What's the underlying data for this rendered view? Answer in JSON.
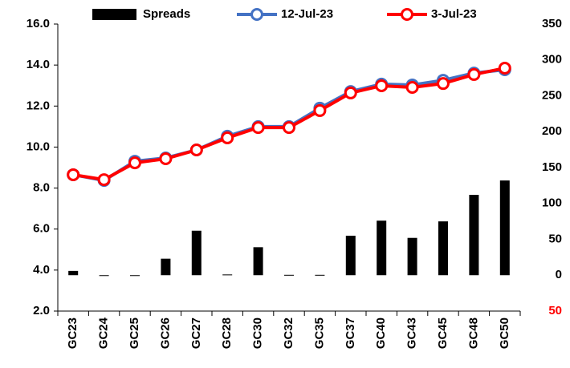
{
  "chart_data": {
    "type": "bar",
    "categories": [
      "GC23",
      "GC24",
      "GC25",
      "GC26",
      "GC27",
      "GC28",
      "GC30",
      "GC32",
      "GC35",
      "GC37",
      "GC40",
      "GC43",
      "GC45",
      "GC48",
      "GC50"
    ],
    "series": [
      {
        "name": "Spreads",
        "type": "bar",
        "axis": "y2",
        "color": "#000000",
        "values": [
          6,
          0,
          0,
          23,
          62,
          1,
          39,
          0.5,
          0.5,
          55,
          76,
          52,
          75,
          112,
          132
        ]
      },
      {
        "name": "12-Jul-23",
        "type": "line",
        "color": "#4472c4",
        "values": [
          8.65,
          8.37,
          9.31,
          9.47,
          9.86,
          10.53,
          11.0,
          11.0,
          11.9,
          12.71,
          13.07,
          13.03,
          13.26,
          13.61,
          13.77
        ]
      },
      {
        "name": "3-Jul-23",
        "type": "line",
        "color": "#ff0000",
        "values": [
          8.65,
          8.41,
          9.23,
          9.43,
          9.86,
          10.45,
          10.95,
          10.95,
          11.78,
          12.64,
          12.99,
          12.91,
          13.1,
          13.54,
          13.85
        ]
      }
    ],
    "ylim": [
      2,
      16
    ],
    "yticks": [
      {
        "value": 2,
        "label": "2.0"
      },
      {
        "value": 4,
        "label": "4.0"
      },
      {
        "value": 6,
        "label": "6.0"
      },
      {
        "value": 8,
        "label": "8.0"
      },
      {
        "value": 10,
        "label": "10.0"
      },
      {
        "value": 12,
        "label": "12.0"
      },
      {
        "value": 14,
        "label": "14.0"
      },
      {
        "value": 16,
        "label": "16.0"
      }
    ],
    "y2lim": [
      -50,
      350
    ],
    "y2ticks": [
      {
        "value": -50,
        "label": "50"
      },
      0,
      50,
      100,
      150,
      200,
      250,
      300,
      350
    ],
    "negative_tick_color": "#ff0000",
    "legend": "top"
  }
}
